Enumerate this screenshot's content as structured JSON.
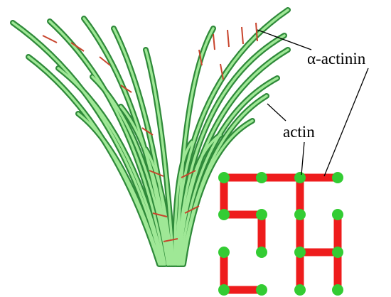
{
  "labels": {
    "crosslinker": "α-actinin",
    "filament": "actin"
  }
}
